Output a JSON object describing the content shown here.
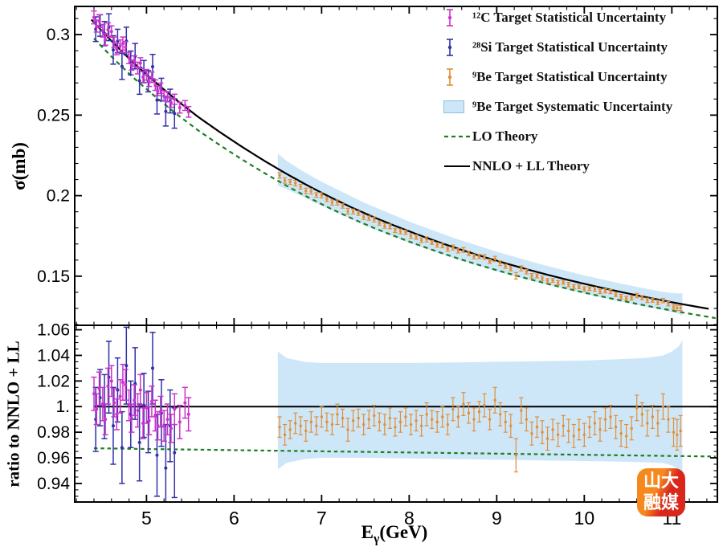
{
  "chart_data": {
    "type": "scatter",
    "title": "",
    "xlabel_parts": {
      "pre": "E",
      "sub": "γ",
      "post": "(GeV)"
    },
    "x_range": [
      4.18,
      11.52
    ],
    "x_major_ticks": [
      5,
      6,
      7,
      8,
      9,
      10,
      11
    ],
    "x_major_tick_labels": [
      "5",
      "6",
      "7",
      "8",
      "9",
      "10",
      "11"
    ],
    "x_minor_step": 0.2,
    "panels": {
      "top": {
        "ylabel": "σ(mb)",
        "y_range": [
          0.1195,
          0.3175
        ],
        "y_major_ticks": [
          0.3,
          0.25,
          0.2,
          0.15
        ],
        "y_major_tick_labels": [
          "0.3",
          "0.25",
          "0.2",
          "0.15"
        ],
        "y_minor_step": 0.01
      },
      "bottom": {
        "ylabel": "ratio to NNLO + LL",
        "y_range": [
          0.9255,
          1.0635
        ],
        "y_major_ticks": [
          1.06,
          1.04,
          1.02,
          1.0,
          0.98,
          0.96,
          0.94
        ],
        "y_major_tick_labels": [
          "1.06",
          "1.04",
          "1.02",
          "1.",
          "0.98",
          "0.96",
          "0.94"
        ],
        "y_minor_step": 0.005,
        "reference_line": 1.0
      }
    },
    "curves": {
      "nnlo": {
        "label": "NNLO + LL Theory",
        "color": "#000000",
        "style": "solid",
        "E_range": [
          4.37,
          11.45
        ],
        "points": [
          [
            4.35,
            0.3105
          ],
          [
            4.6,
            0.296
          ],
          [
            4.85,
            0.2825
          ],
          [
            5.1,
            0.2705
          ],
          [
            5.35,
            0.259
          ],
          [
            5.6,
            0.2485
          ],
          [
            5.85,
            0.239
          ],
          [
            6.1,
            0.23
          ],
          [
            6.35,
            0.2215
          ],
          [
            6.6,
            0.2135
          ],
          [
            6.85,
            0.206
          ],
          [
            7.1,
            0.199
          ],
          [
            7.35,
            0.1925
          ],
          [
            7.6,
            0.1865
          ],
          [
            7.85,
            0.181
          ],
          [
            8.1,
            0.1758
          ],
          [
            8.35,
            0.1709
          ],
          [
            8.6,
            0.1663
          ],
          [
            8.85,
            0.162
          ],
          [
            9.1,
            0.158
          ],
          [
            9.35,
            0.1542
          ],
          [
            9.6,
            0.1506
          ],
          [
            9.85,
            0.1472
          ],
          [
            10.1,
            0.144
          ],
          [
            10.35,
            0.141
          ],
          [
            10.6,
            0.1381
          ],
          [
            10.85,
            0.1354
          ],
          [
            11.1,
            0.1328
          ],
          [
            11.35,
            0.1304
          ],
          [
            11.5,
            0.129
          ]
        ]
      },
      "lo": {
        "label": "LO Theory",
        "color": "#1E7E23",
        "style": "dashed",
        "E_range": [
          4.4,
          11.5
        ],
        "ratio_to_nnlo": {
          "E": [
            4.35,
            11.5
          ],
          "ratio": [
            0.9675,
            0.961
          ]
        }
      }
    },
    "band": {
      "label": "⁹Be Target Systematic Uncertainty",
      "fill": "#CEE7F8",
      "border": "#8CC0DE",
      "E": [
        6.5,
        6.6,
        6.8,
        7.0,
        7.5,
        8.0,
        8.5,
        9.0,
        9.5,
        10.0,
        10.4,
        10.7,
        10.9,
        11.0,
        11.08,
        11.12
      ],
      "ratio_hi": [
        1.043,
        1.038,
        1.035,
        1.034,
        1.034,
        1.034,
        1.0345,
        1.035,
        1.0355,
        1.036,
        1.037,
        1.038,
        1.04,
        1.043,
        1.047,
        1.052
      ],
      "ratio_lo": [
        0.951,
        0.956,
        0.959,
        0.96,
        0.96,
        0.9595,
        0.959,
        0.9585,
        0.958,
        0.9575,
        0.957,
        0.9565,
        0.956,
        0.954,
        0.951,
        0.947
      ]
    },
    "series": [
      {
        "name": "C12",
        "label": "¹²C Target Statistical Uncertainty",
        "color": "#CC33CC",
        "points_format": [
          "E_GeV",
          "ratio_to_nnlo",
          "stat_err_ratio"
        ],
        "points": [
          [
            4.4,
            1.01,
            0.013
          ],
          [
            4.43,
            0.998,
            0.012
          ],
          [
            4.46,
            1.014,
            0.013
          ],
          [
            4.5,
            1.002,
            0.013
          ],
          [
            4.53,
            0.99,
            0.012
          ],
          [
            4.56,
            1.016,
            0.014
          ],
          [
            4.6,
            1.02,
            0.012
          ],
          [
            4.63,
            1.003,
            0.011
          ],
          [
            4.66,
            0.994,
            0.012
          ],
          [
            4.7,
            1.008,
            0.013
          ],
          [
            4.73,
            1.019,
            0.014
          ],
          [
            4.76,
            1.017,
            0.012
          ],
          [
            4.8,
            1.001,
            0.012
          ],
          [
            4.83,
            0.991,
            0.011
          ],
          [
            4.86,
            1.005,
            0.012
          ],
          [
            4.9,
            0.997,
            0.013
          ],
          [
            4.93,
            1.013,
            0.012
          ],
          [
            4.96,
            0.987,
            0.012
          ],
          [
            5.0,
            0.999,
            0.012
          ],
          [
            5.03,
            0.989,
            0.011
          ],
          [
            5.06,
            1.004,
            0.012
          ],
          [
            5.1,
            0.993,
            0.012
          ],
          [
            5.13,
            0.985,
            0.011
          ],
          [
            5.16,
            0.996,
            0.012
          ],
          [
            5.2,
            0.985,
            0.012
          ],
          [
            5.24,
            0.99,
            0.012
          ],
          [
            5.28,
            0.983,
            0.011
          ],
          [
            5.32,
            0.998,
            0.012
          ],
          [
            5.38,
            0.988,
            0.013
          ],
          [
            5.44,
            1.003,
            0.012
          ],
          [
            5.48,
            0.994,
            0.013
          ]
        ]
      },
      {
        "name": "Si28",
        "label": "²⁸Si Target Statistical Uncertainty",
        "color": "#3030A8",
        "points_format": [
          "E_GeV",
          "ratio_to_nnlo",
          "stat_err_ratio"
        ],
        "points": [
          [
            4.42,
            0.99,
            0.025
          ],
          [
            4.47,
            1.007,
            0.022
          ],
          [
            4.52,
            1.0,
            0.025
          ],
          [
            4.57,
            1.023,
            0.028
          ],
          [
            4.62,
            0.985,
            0.03
          ],
          [
            4.67,
            1.013,
            0.025
          ],
          [
            4.72,
            0.968,
            0.028
          ],
          [
            4.77,
            1.032,
            0.03
          ],
          [
            4.82,
            0.994,
            0.026
          ],
          [
            4.87,
            1.018,
            0.028
          ],
          [
            4.92,
            0.972,
            0.03
          ],
          [
            4.97,
            1.001,
            0.025
          ],
          [
            5.02,
            0.988,
            0.024
          ],
          [
            5.07,
            1.03,
            0.028
          ],
          [
            5.12,
            0.962,
            0.032
          ],
          [
            5.17,
            0.995,
            0.026
          ],
          [
            5.22,
            0.952,
            0.034
          ],
          [
            5.27,
            0.985,
            0.028
          ],
          [
            5.32,
            0.964,
            0.035
          ]
        ]
      },
      {
        "name": "Be9",
        "label": "⁹Be Target Statistical Uncertainty",
        "color": "#E28E38",
        "points_format": [
          "E_GeV",
          "ratio_to_nnlo",
          "stat_err_ratio"
        ],
        "points": [
          [
            6.52,
            0.984,
            0.008
          ],
          [
            6.58,
            0.978,
            0.008
          ],
          [
            6.64,
            0.982,
            0.007
          ],
          [
            6.7,
            0.987,
            0.008
          ],
          [
            6.76,
            0.985,
            0.007
          ],
          [
            6.82,
            0.981,
            0.008
          ],
          [
            6.88,
            0.988,
            0.008
          ],
          [
            6.94,
            0.985,
            0.007
          ],
          [
            7.0,
            0.992,
            0.008
          ],
          [
            7.06,
            0.988,
            0.007
          ],
          [
            7.12,
            0.986,
            0.008
          ],
          [
            7.18,
            0.994,
            0.008
          ],
          [
            7.24,
            0.991,
            0.007
          ],
          [
            7.3,
            0.982,
            0.009
          ],
          [
            7.36,
            0.989,
            0.008
          ],
          [
            7.42,
            0.991,
            0.007
          ],
          [
            7.48,
            0.986,
            0.008
          ],
          [
            7.54,
            0.99,
            0.007
          ],
          [
            7.6,
            0.993,
            0.008
          ],
          [
            7.66,
            0.988,
            0.007
          ],
          [
            7.72,
            0.986,
            0.008
          ],
          [
            7.78,
            0.991,
            0.008
          ],
          [
            7.84,
            0.984,
            0.007
          ],
          [
            7.9,
            0.988,
            0.008
          ],
          [
            7.96,
            0.992,
            0.007
          ],
          [
            8.02,
            0.986,
            0.008
          ],
          [
            8.08,
            0.989,
            0.008
          ],
          [
            8.14,
            0.985,
            0.008
          ],
          [
            8.2,
            0.994,
            0.009
          ],
          [
            8.26,
            0.99,
            0.007
          ],
          [
            8.32,
            0.988,
            0.008
          ],
          [
            8.38,
            0.992,
            0.008
          ],
          [
            8.44,
            0.986,
            0.008
          ],
          [
            8.5,
            0.998,
            0.009
          ],
          [
            8.56,
            0.992,
            0.008
          ],
          [
            8.62,
            1.002,
            0.009
          ],
          [
            8.68,
            0.995,
            0.008
          ],
          [
            8.74,
            0.99,
            0.009
          ],
          [
            8.8,
            0.996,
            0.008
          ],
          [
            8.86,
            1.001,
            0.009
          ],
          [
            8.92,
            0.99,
            0.008
          ],
          [
            8.98,
            1.005,
            0.01
          ],
          [
            9.04,
            0.994,
            0.009
          ],
          [
            9.1,
            0.988,
            0.008
          ],
          [
            9.16,
            0.985,
            0.009
          ],
          [
            9.22,
            0.962,
            0.013
          ],
          [
            9.28,
            0.997,
            0.01
          ],
          [
            9.34,
            0.99,
            0.009
          ],
          [
            9.4,
            0.979,
            0.009
          ],
          [
            9.46,
            0.984,
            0.008
          ],
          [
            9.52,
            0.98,
            0.009
          ],
          [
            9.58,
            0.975,
            0.009
          ],
          [
            9.64,
            0.982,
            0.008
          ],
          [
            9.7,
            0.978,
            0.009
          ],
          [
            9.76,
            0.985,
            0.008
          ],
          [
            9.82,
            0.981,
            0.009
          ],
          [
            9.88,
            0.977,
            0.009
          ],
          [
            9.94,
            0.982,
            0.008
          ],
          [
            10.0,
            0.978,
            0.009
          ],
          [
            10.06,
            0.984,
            0.008
          ],
          [
            10.12,
            0.987,
            0.009
          ],
          [
            10.18,
            0.982,
            0.009
          ],
          [
            10.24,
            0.99,
            0.009
          ],
          [
            10.3,
            0.992,
            0.009
          ],
          [
            10.36,
            0.984,
            0.009
          ],
          [
            10.42,
            0.979,
            0.01
          ],
          [
            10.48,
            0.977,
            0.009
          ],
          [
            10.54,
            0.983,
            0.009
          ],
          [
            10.6,
            0.999,
            0.01
          ],
          [
            10.66,
            0.994,
            0.009
          ],
          [
            10.72,
            0.987,
            0.01
          ],
          [
            10.78,
            0.992,
            0.009
          ],
          [
            10.84,
            0.987,
            0.01
          ],
          [
            10.9,
            1.0,
            0.01
          ],
          [
            10.96,
            0.99,
            0.01
          ],
          [
            11.02,
            0.98,
            0.011
          ],
          [
            11.06,
            0.978,
            0.012
          ],
          [
            11.1,
            0.981,
            0.012
          ]
        ]
      }
    ],
    "legend_order": [
      "C12",
      "Si28",
      "Be9",
      "band",
      "lo",
      "nnlo"
    ]
  },
  "logo": {
    "line1": "山大",
    "line2": "融媒",
    "color_top": "#F6891E",
    "color_bottom": "#D9271C",
    "text_color": "#FFFFFF"
  }
}
